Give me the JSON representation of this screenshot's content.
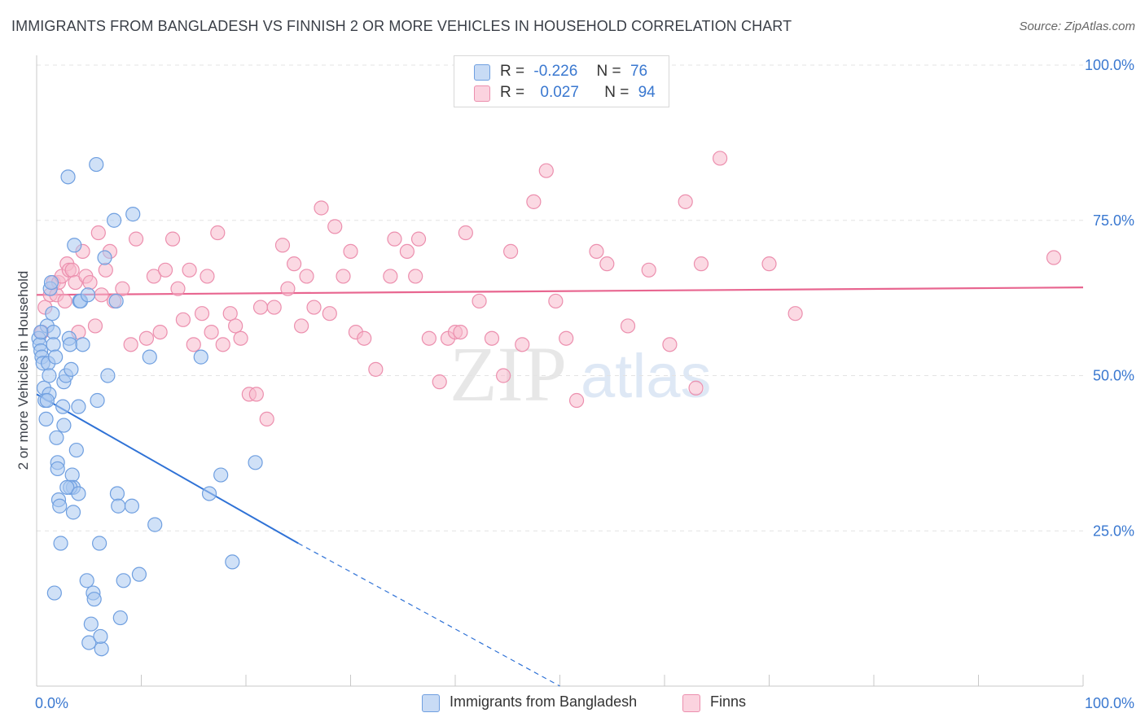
{
  "header": {
    "title": "IMMIGRANTS FROM BANGLADESH VS FINNISH 2 OR MORE VEHICLES IN HOUSEHOLD CORRELATION CHART",
    "source": "Source: ZipAtlas.com"
  },
  "watermark": {
    "zip": "ZIP",
    "atlas": "atlas"
  },
  "legend": {
    "rows": [
      {
        "r_label": "R =",
        "r_value": "-0.226",
        "n_label": "N =",
        "n_value": "76",
        "color": "#a9c8f0"
      },
      {
        "r_label": "R =",
        "r_value": "0.027",
        "n_label": "N =",
        "n_value": "94",
        "color": "#f7b9cc"
      }
    ]
  },
  "colors": {
    "blue_fill": "#a9c8f0",
    "blue_stroke": "#6f9fe0",
    "blue_line": "#2f72d6",
    "pink_fill": "#f7b9cc",
    "pink_stroke": "#ec8fae",
    "pink_line": "#e86690",
    "axis_text": "#3a78d0",
    "grid": "#e3e3e3"
  },
  "chart_data": {
    "type": "scatter",
    "title": "IMMIGRANTS FROM BANGLADESH VS FINNISH 2 OR MORE VEHICLES IN HOUSEHOLD CORRELATION CHART",
    "xlabel": "",
    "ylabel": "2 or more Vehicles in Household",
    "xlim": [
      0,
      100
    ],
    "ylim": [
      0,
      100
    ],
    "x_tick_labels": [
      "0.0%",
      "100.0%"
    ],
    "y_tick_labels": [
      "25.0%",
      "50.0%",
      "75.0%",
      "100.0%"
    ],
    "y_ticks": [
      25,
      50,
      75,
      100
    ],
    "grid": true,
    "series": [
      {
        "name": "Immigrants from Bangladesh",
        "color": "#a9c8f0",
        "points": [
          [
            0.2,
            56
          ],
          [
            0.3,
            55
          ],
          [
            0.4,
            54
          ],
          [
            0.5,
            53
          ],
          [
            0.6,
            52
          ],
          [
            0.7,
            48
          ],
          [
            0.8,
            46
          ],
          [
            0.9,
            43
          ],
          [
            1.0,
            58
          ],
          [
            1.1,
            52
          ],
          [
            1.2,
            50
          ],
          [
            1.2,
            47
          ],
          [
            1.3,
            64
          ],
          [
            1.4,
            65
          ],
          [
            1.5,
            60
          ],
          [
            1.6,
            57
          ],
          [
            1.6,
            55
          ],
          [
            1.8,
            53
          ],
          [
            1.9,
            40
          ],
          [
            2.0,
            36
          ],
          [
            2.0,
            35
          ],
          [
            2.1,
            30
          ],
          [
            2.2,
            29
          ],
          [
            2.3,
            23
          ],
          [
            2.5,
            45
          ],
          [
            2.6,
            49
          ],
          [
            2.8,
            50
          ],
          [
            3.0,
            82
          ],
          [
            3.1,
            56
          ],
          [
            3.2,
            55
          ],
          [
            3.3,
            51
          ],
          [
            3.4,
            34
          ],
          [
            3.5,
            32
          ],
          [
            3.5,
            28
          ],
          [
            3.6,
            71
          ],
          [
            3.8,
            38
          ],
          [
            4.0,
            45
          ],
          [
            4.1,
            62
          ],
          [
            4.2,
            62
          ],
          [
            4.4,
            55
          ],
          [
            4.8,
            17
          ],
          [
            5.0,
            7
          ],
          [
            5.2,
            10
          ],
          [
            5.4,
            15
          ],
          [
            5.5,
            14
          ],
          [
            5.8,
            46
          ],
          [
            6.0,
            23
          ],
          [
            6.2,
            6
          ],
          [
            6.5,
            69
          ],
          [
            6.8,
            50
          ],
          [
            7.4,
            75
          ],
          [
            7.6,
            62
          ],
          [
            7.7,
            31
          ],
          [
            7.8,
            29
          ],
          [
            8.0,
            11
          ],
          [
            8.3,
            17
          ],
          [
            9.1,
            29
          ],
          [
            9.2,
            76
          ],
          [
            9.8,
            18
          ],
          [
            10.8,
            53
          ],
          [
            11.3,
            26
          ],
          [
            15.7,
            53
          ],
          [
            16.5,
            31
          ],
          [
            17.6,
            34
          ],
          [
            18.7,
            20
          ],
          [
            20.9,
            36
          ],
          [
            3.2,
            32
          ],
          [
            2.9,
            32
          ],
          [
            1.7,
            15
          ],
          [
            0.4,
            57
          ],
          [
            5.7,
            84
          ],
          [
            4.9,
            63
          ],
          [
            2.6,
            42
          ],
          [
            1.0,
            46
          ],
          [
            6.1,
            8
          ],
          [
            4.0,
            31
          ]
        ],
        "trend": {
          "x0": 0,
          "y0": 47,
          "x1": 25,
          "y1": 23,
          "dashed_to": {
            "x": 50,
            "y": 0
          }
        }
      },
      {
        "name": "Finns",
        "color": "#f7b9cc",
        "points": [
          [
            0.5,
            57
          ],
          [
            0.8,
            61
          ],
          [
            1.3,
            63
          ],
          [
            1.6,
            65
          ],
          [
            1.9,
            63
          ],
          [
            2.1,
            65
          ],
          [
            2.4,
            66
          ],
          [
            2.7,
            62
          ],
          [
            2.9,
            68
          ],
          [
            3.1,
            67
          ],
          [
            3.4,
            67
          ],
          [
            3.7,
            65
          ],
          [
            4.0,
            57
          ],
          [
            4.4,
            70
          ],
          [
            4.7,
            66
          ],
          [
            5.1,
            65
          ],
          [
            5.6,
            58
          ],
          [
            5.9,
            73
          ],
          [
            6.2,
            63
          ],
          [
            6.6,
            67
          ],
          [
            7.0,
            70
          ],
          [
            7.4,
            62
          ],
          [
            8.2,
            64
          ],
          [
            9.0,
            55
          ],
          [
            9.5,
            72
          ],
          [
            10.5,
            56
          ],
          [
            11.2,
            66
          ],
          [
            11.8,
            57
          ],
          [
            12.3,
            67
          ],
          [
            13.0,
            72
          ],
          [
            13.5,
            64
          ],
          [
            14.0,
            59
          ],
          [
            14.6,
            67
          ],
          [
            15.0,
            55
          ],
          [
            15.8,
            60
          ],
          [
            16.3,
            66
          ],
          [
            16.7,
            57
          ],
          [
            17.3,
            73
          ],
          [
            17.8,
            55
          ],
          [
            18.5,
            60
          ],
          [
            19.0,
            58
          ],
          [
            19.5,
            56
          ],
          [
            20.3,
            47
          ],
          [
            21.0,
            47
          ],
          [
            21.4,
            61
          ],
          [
            22.0,
            43
          ],
          [
            22.7,
            61
          ],
          [
            23.5,
            71
          ],
          [
            24.0,
            64
          ],
          [
            24.6,
            68
          ],
          [
            25.3,
            58
          ],
          [
            25.8,
            66
          ],
          [
            26.5,
            61
          ],
          [
            27.2,
            77
          ],
          [
            28.0,
            60
          ],
          [
            28.5,
            74
          ],
          [
            29.3,
            66
          ],
          [
            30.0,
            70
          ],
          [
            30.5,
            57
          ],
          [
            31.3,
            56
          ],
          [
            32.4,
            51
          ],
          [
            33.8,
            66
          ],
          [
            34.2,
            72
          ],
          [
            35.4,
            70
          ],
          [
            36.5,
            72
          ],
          [
            37.5,
            56
          ],
          [
            38.5,
            49
          ],
          [
            39.3,
            56
          ],
          [
            40.0,
            57
          ],
          [
            41.0,
            73
          ],
          [
            42.3,
            62
          ],
          [
            43.5,
            56
          ],
          [
            44.6,
            50
          ],
          [
            45.3,
            70
          ],
          [
            46.4,
            55
          ],
          [
            47.5,
            78
          ],
          [
            48.7,
            83
          ],
          [
            49.6,
            62
          ],
          [
            50.6,
            56
          ],
          [
            51.6,
            46
          ],
          [
            53.5,
            70
          ],
          [
            54.5,
            68
          ],
          [
            56.5,
            58
          ],
          [
            58.5,
            67
          ],
          [
            60.5,
            55
          ],
          [
            62.0,
            78
          ],
          [
            63.5,
            68
          ],
          [
            65.3,
            85
          ],
          [
            70.0,
            68
          ],
          [
            72.5,
            60
          ],
          [
            97.2,
            69
          ],
          [
            63.0,
            48
          ],
          [
            40.5,
            57
          ],
          [
            36.2,
            66
          ]
        ],
        "trend": {
          "x0": 0,
          "y0": 63,
          "x1": 100,
          "y1": 64.2
        }
      }
    ]
  }
}
